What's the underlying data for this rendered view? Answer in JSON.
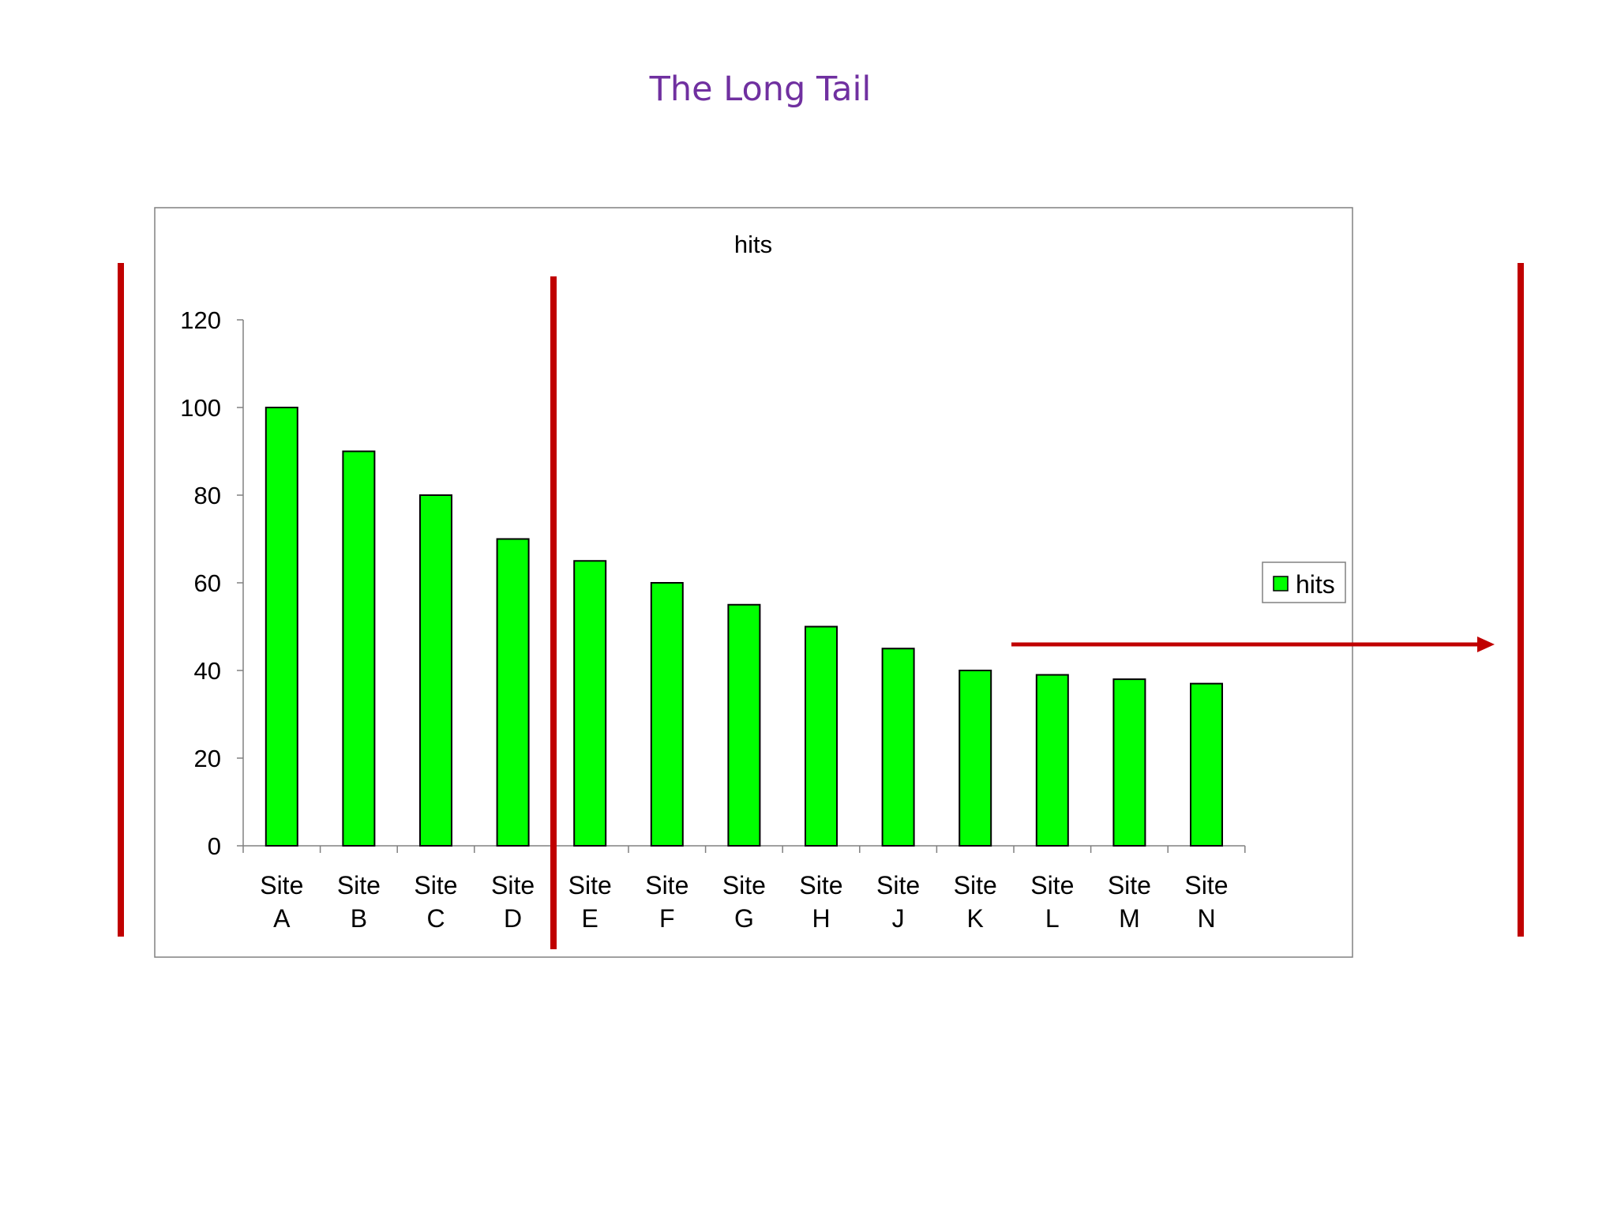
{
  "slide": {
    "title": "The Long Tail"
  },
  "colors": {
    "title": "#7030a0",
    "bar_fill": "#00ff00",
    "bar_stroke": "#000000",
    "annotation": "#c00000",
    "frame": "#808080"
  },
  "chart_data": {
    "type": "bar",
    "title": "hits",
    "xlabel": "",
    "ylabel": "",
    "categories": [
      "Site A",
      "Site B",
      "Site C",
      "Site D",
      "Site E",
      "Site F",
      "Site G",
      "Site H",
      "Site J",
      "Site K",
      "Site L",
      "Site M",
      "Site N"
    ],
    "series": [
      {
        "name": "hits",
        "values": [
          100,
          90,
          80,
          70,
          65,
          60,
          55,
          50,
          45,
          40,
          39,
          38,
          37
        ]
      }
    ],
    "ylim": [
      0,
      120
    ],
    "yticks": [
      0,
      20,
      40,
      60,
      80,
      100,
      120
    ],
    "grid": false,
    "legend": "right"
  },
  "annotations": {
    "head_divider": "between Site D and Site E",
    "tail_arrow": "points right",
    "side_brackets": "left and right"
  }
}
